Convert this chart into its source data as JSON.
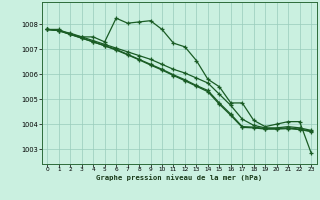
{
  "title": "Graphe pression niveau de la mer (hPa)",
  "bg_color": "#caf0e0",
  "grid_color": "#99ccbb",
  "line_color": "#1a5c25",
  "xlim": [
    -0.5,
    23.5
  ],
  "ylim": [
    1002.4,
    1008.9
  ],
  "yticks": [
    1003,
    1004,
    1005,
    1006,
    1007,
    1008
  ],
  "xticks": [
    0,
    1,
    2,
    3,
    4,
    5,
    6,
    7,
    8,
    9,
    10,
    11,
    12,
    13,
    14,
    15,
    16,
    17,
    18,
    19,
    20,
    21,
    22,
    23
  ],
  "line1": [
    1007.8,
    1007.8,
    1007.6,
    1007.5,
    1007.5,
    1007.3,
    1008.25,
    1008.05,
    1008.1,
    1008.15,
    1007.8,
    1007.25,
    1007.1,
    1006.55,
    1005.8,
    1005.5,
    1004.85,
    1004.85,
    1004.15,
    1003.9,
    1004.0,
    1004.1,
    1004.1,
    1002.85
  ],
  "line2": [
    1007.8,
    1007.75,
    1007.65,
    1007.5,
    1007.35,
    1007.2,
    1007.05,
    1006.9,
    1006.75,
    1006.6,
    1006.4,
    1006.2,
    1006.05,
    1005.85,
    1005.65,
    1005.2,
    1004.75,
    1004.2,
    1003.95,
    1003.85,
    1003.85,
    1003.9,
    1003.85,
    1003.75
  ],
  "line3": [
    1007.8,
    1007.75,
    1007.6,
    1007.45,
    1007.3,
    1007.15,
    1007.0,
    1006.8,
    1006.6,
    1006.4,
    1006.2,
    1005.98,
    1005.78,
    1005.55,
    1005.35,
    1004.85,
    1004.4,
    1003.9,
    1003.88,
    1003.82,
    1003.82,
    1003.85,
    1003.8,
    1003.72
  ],
  "line4": [
    1007.8,
    1007.75,
    1007.6,
    1007.45,
    1007.3,
    1007.14,
    1006.97,
    1006.78,
    1006.58,
    1006.37,
    1006.17,
    1005.95,
    1005.74,
    1005.52,
    1005.3,
    1004.8,
    1004.35,
    1003.87,
    1003.85,
    1003.8,
    1003.8,
    1003.82,
    1003.78,
    1003.7
  ]
}
